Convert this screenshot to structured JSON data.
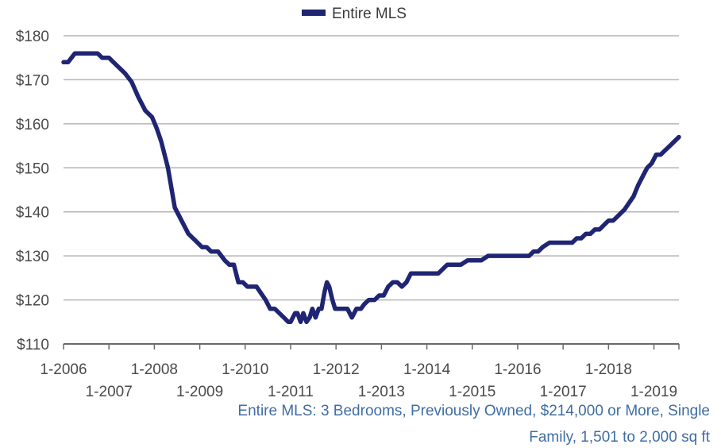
{
  "chart_data": {
    "type": "line",
    "title": "",
    "xlabel": "",
    "ylabel": "",
    "ylim": [
      110,
      180
    ],
    "y_ticks": [
      "$110",
      "$120",
      "$130",
      "$140",
      "$150",
      "$160",
      "$170",
      "$180"
    ],
    "x_ticks_upper": [
      "1-2006",
      "1-2008",
      "1-2010",
      "1-2012",
      "1-2014",
      "1-2016",
      "1-2018"
    ],
    "x_ticks_lower": [
      "1-2007",
      "1-2009",
      "1-2011",
      "1-2013",
      "1-2015",
      "1-2017",
      "1-2019"
    ],
    "x_range": [
      2006.0,
      2019.55
    ],
    "grid": true,
    "legend_position": "top-center",
    "series": [
      {
        "name": "Entire MLS",
        "color": "#1f2573",
        "x": [
          2006.0,
          2006.1,
          2006.25,
          2006.4,
          2006.6,
          2006.75,
          2006.85,
          2007.0,
          2007.1,
          2007.2,
          2007.35,
          2007.5,
          2007.65,
          2007.8,
          2007.95,
          2008.05,
          2008.15,
          2008.3,
          2008.45,
          2008.6,
          2008.75,
          2008.9,
          2009.05,
          2009.15,
          2009.25,
          2009.4,
          2009.55,
          2009.65,
          2009.75,
          2009.85,
          2009.95,
          2010.05,
          2010.15,
          2010.25,
          2010.35,
          2010.45,
          2010.55,
          2010.65,
          2010.75,
          2010.85,
          2010.95,
          2011.0,
          2011.05,
          2011.1,
          2011.15,
          2011.22,
          2011.28,
          2011.35,
          2011.42,
          2011.48,
          2011.55,
          2011.62,
          2011.68,
          2011.75,
          2011.8,
          2011.85,
          2011.92,
          2011.98,
          2012.02,
          2012.08,
          2012.15,
          2012.25,
          2012.35,
          2012.45,
          2012.55,
          2012.62,
          2012.72,
          2012.85,
          2012.95,
          2013.05,
          2013.15,
          2013.25,
          2013.35,
          2013.45,
          2013.55,
          2013.65,
          2013.75,
          2013.85,
          2013.95,
          2014.1,
          2014.25,
          2014.45,
          2014.6,
          2014.75,
          2014.9,
          2015.05,
          2015.2,
          2015.35,
          2015.55,
          2015.75,
          2015.95,
          2016.1,
          2016.25,
          2016.35,
          2016.45,
          2016.55,
          2016.7,
          2016.85,
          2017.0,
          2017.1,
          2017.2,
          2017.3,
          2017.4,
          2017.5,
          2017.6,
          2017.7,
          2017.8,
          2017.9,
          2018.0,
          2018.1,
          2018.2,
          2018.35,
          2018.45,
          2018.55,
          2018.65,
          2018.75,
          2018.85,
          2018.95,
          2019.05,
          2019.15,
          2019.25,
          2019.35,
          2019.45,
          2019.55
        ],
        "values": [
          174,
          174,
          176,
          176,
          176,
          176,
          175,
          175,
          174,
          173,
          171.5,
          169.5,
          166,
          163,
          161.5,
          159,
          156,
          150,
          141,
          138,
          135,
          133.5,
          132,
          132,
          131,
          131,
          129,
          128,
          128,
          124,
          124,
          123,
          123,
          123,
          121.5,
          120,
          118,
          118,
          117,
          116,
          115,
          115,
          116,
          117,
          117,
          115,
          117,
          115,
          116,
          118,
          116,
          118,
          118,
          122,
          124,
          123,
          120,
          118,
          118,
          118,
          118,
          118,
          116,
          118,
          118,
          119,
          120,
          120,
          121,
          121,
          123,
          124,
          124,
          123,
          124,
          126,
          126,
          126,
          126,
          126,
          126,
          128,
          128,
          128,
          129,
          129,
          129,
          130,
          130,
          130,
          130,
          130,
          130,
          131,
          131,
          132,
          133,
          133,
          133,
          133,
          133,
          134,
          134,
          135,
          135,
          136,
          136,
          137,
          138,
          138,
          139,
          140.5,
          142,
          143.5,
          146,
          148,
          150,
          151,
          153,
          153,
          154,
          155,
          156,
          157
        ]
      }
    ]
  },
  "caption": {
    "line1": "Entire MLS: 3 Bedrooms, Previously Owned, $214,000 or More, Single",
    "line2": "Family, 1,501 to 2,000 sq ft"
  }
}
